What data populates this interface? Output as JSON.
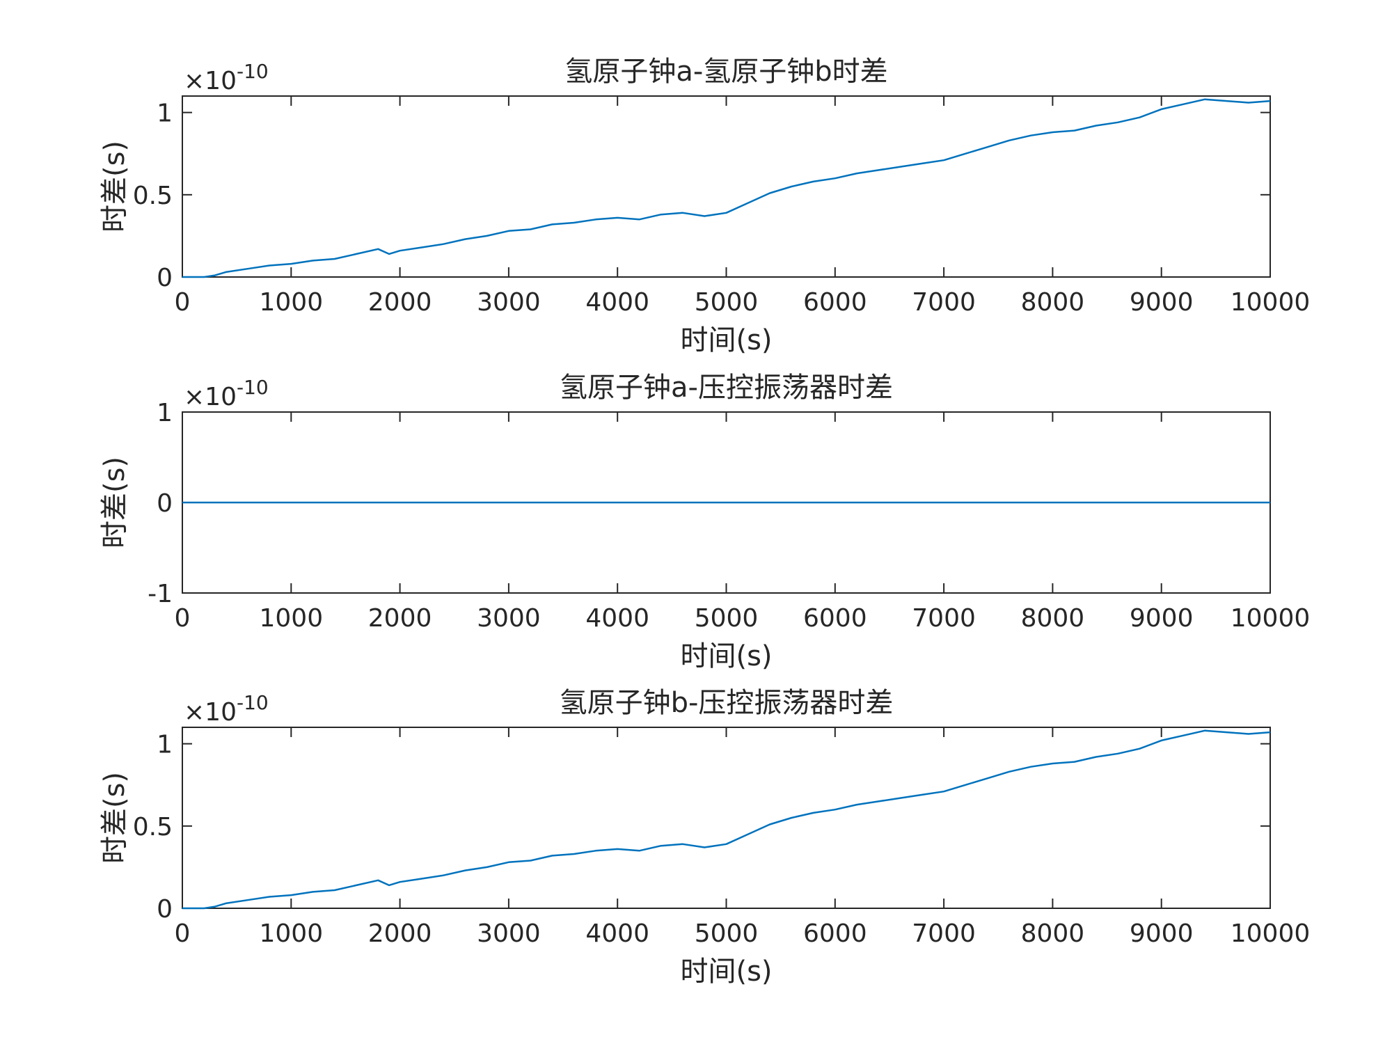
{
  "chart_data": [
    {
      "type": "line",
      "title": "氢原子钟a-氢原子钟b时差",
      "xlabel": "时间(s)",
      "ylabel": "时差(s)",
      "exponent_base": "×10",
      "exponent_power": "-10",
      "xlim": [
        0,
        10000
      ],
      "ylim": [
        0,
        1.1
      ],
      "xticks": [
        0,
        1000,
        2000,
        3000,
        4000,
        5000,
        6000,
        7000,
        8000,
        9000,
        10000
      ],
      "xtick_labels": [
        "0",
        "1000",
        "2000",
        "3000",
        "4000",
        "5000",
        "6000",
        "7000",
        "8000",
        "9000",
        "10000"
      ],
      "yticks": [
        0,
        0.5,
        1
      ],
      "ytick_labels": [
        "0",
        "0.5",
        "1"
      ],
      "series": [
        {
          "name": "时差",
          "color": "#0072BD",
          "x": [
            0,
            200,
            300,
            400,
            600,
            800,
            1000,
            1200,
            1400,
            1600,
            1800,
            1900,
            2000,
            2200,
            2400,
            2600,
            2800,
            3000,
            3200,
            3400,
            3600,
            3800,
            4000,
            4200,
            4400,
            4600,
            4800,
            5000,
            5200,
            5400,
            5600,
            5800,
            6000,
            6200,
            6400,
            6600,
            6800,
            7000,
            7200,
            7400,
            7600,
            7800,
            8000,
            8200,
            8400,
            8600,
            8800,
            9000,
            9200,
            9400,
            9600,
            9800,
            10000
          ],
          "values": [
            0.0,
            0.0,
            0.01,
            0.03,
            0.05,
            0.07,
            0.08,
            0.1,
            0.11,
            0.14,
            0.17,
            0.14,
            0.16,
            0.18,
            0.2,
            0.23,
            0.25,
            0.28,
            0.29,
            0.32,
            0.33,
            0.35,
            0.36,
            0.35,
            0.38,
            0.39,
            0.37,
            0.39,
            0.45,
            0.51,
            0.55,
            0.58,
            0.6,
            0.63,
            0.65,
            0.67,
            0.69,
            0.71,
            0.75,
            0.79,
            0.83,
            0.86,
            0.88,
            0.89,
            0.92,
            0.94,
            0.97,
            1.02,
            1.05,
            1.08,
            1.07,
            1.06,
            1.07
          ]
        }
      ]
    },
    {
      "type": "line",
      "title": "氢原子钟a-压控振荡器时差",
      "xlabel": "时间(s)",
      "ylabel": "时差(s)",
      "exponent_base": "×10",
      "exponent_power": "-10",
      "xlim": [
        0,
        10000
      ],
      "ylim": [
        -1,
        1
      ],
      "xticks": [
        0,
        1000,
        2000,
        3000,
        4000,
        5000,
        6000,
        7000,
        8000,
        9000,
        10000
      ],
      "xtick_labels": [
        "0",
        "1000",
        "2000",
        "3000",
        "4000",
        "5000",
        "6000",
        "7000",
        "8000",
        "9000",
        "10000"
      ],
      "yticks": [
        -1,
        0,
        1
      ],
      "ytick_labels": [
        "-1",
        "0",
        "1"
      ],
      "series": [
        {
          "name": "时差",
          "color": "#0072BD",
          "x": [
            0,
            1000,
            2000,
            3000,
            4000,
            5000,
            6000,
            7000,
            8000,
            9000,
            10000
          ],
          "values": [
            0,
            0,
            0,
            0,
            0,
            0,
            0,
            0,
            0,
            0,
            0
          ]
        }
      ]
    },
    {
      "type": "line",
      "title": "氢原子钟b-压控振荡器时差",
      "xlabel": "时间(s)",
      "ylabel": "时差(s)",
      "exponent_base": "×10",
      "exponent_power": "-10",
      "xlim": [
        0,
        10000
      ],
      "ylim": [
        0,
        1.1
      ],
      "xticks": [
        0,
        1000,
        2000,
        3000,
        4000,
        5000,
        6000,
        7000,
        8000,
        9000,
        10000
      ],
      "xtick_labels": [
        "0",
        "1000",
        "2000",
        "3000",
        "4000",
        "5000",
        "6000",
        "7000",
        "8000",
        "9000",
        "10000"
      ],
      "yticks": [
        0,
        0.5,
        1
      ],
      "ytick_labels": [
        "0",
        "0.5",
        "1"
      ],
      "series": [
        {
          "name": "时差",
          "color": "#0072BD",
          "x": [
            0,
            200,
            300,
            400,
            600,
            800,
            1000,
            1200,
            1400,
            1600,
            1800,
            1900,
            2000,
            2200,
            2400,
            2600,
            2800,
            3000,
            3200,
            3400,
            3600,
            3800,
            4000,
            4200,
            4400,
            4600,
            4800,
            5000,
            5200,
            5400,
            5600,
            5800,
            6000,
            6200,
            6400,
            6600,
            6800,
            7000,
            7200,
            7400,
            7600,
            7800,
            8000,
            8200,
            8400,
            8600,
            8800,
            9000,
            9200,
            9400,
            9600,
            9800,
            10000
          ],
          "values": [
            0.0,
            0.0,
            0.01,
            0.03,
            0.05,
            0.07,
            0.08,
            0.1,
            0.11,
            0.14,
            0.17,
            0.14,
            0.16,
            0.18,
            0.2,
            0.23,
            0.25,
            0.28,
            0.29,
            0.32,
            0.33,
            0.35,
            0.36,
            0.35,
            0.38,
            0.39,
            0.37,
            0.39,
            0.45,
            0.51,
            0.55,
            0.58,
            0.6,
            0.63,
            0.65,
            0.67,
            0.69,
            0.71,
            0.75,
            0.79,
            0.83,
            0.86,
            0.88,
            0.89,
            0.92,
            0.94,
            0.97,
            1.02,
            1.05,
            1.08,
            1.07,
            1.06,
            1.07
          ]
        }
      ]
    }
  ]
}
